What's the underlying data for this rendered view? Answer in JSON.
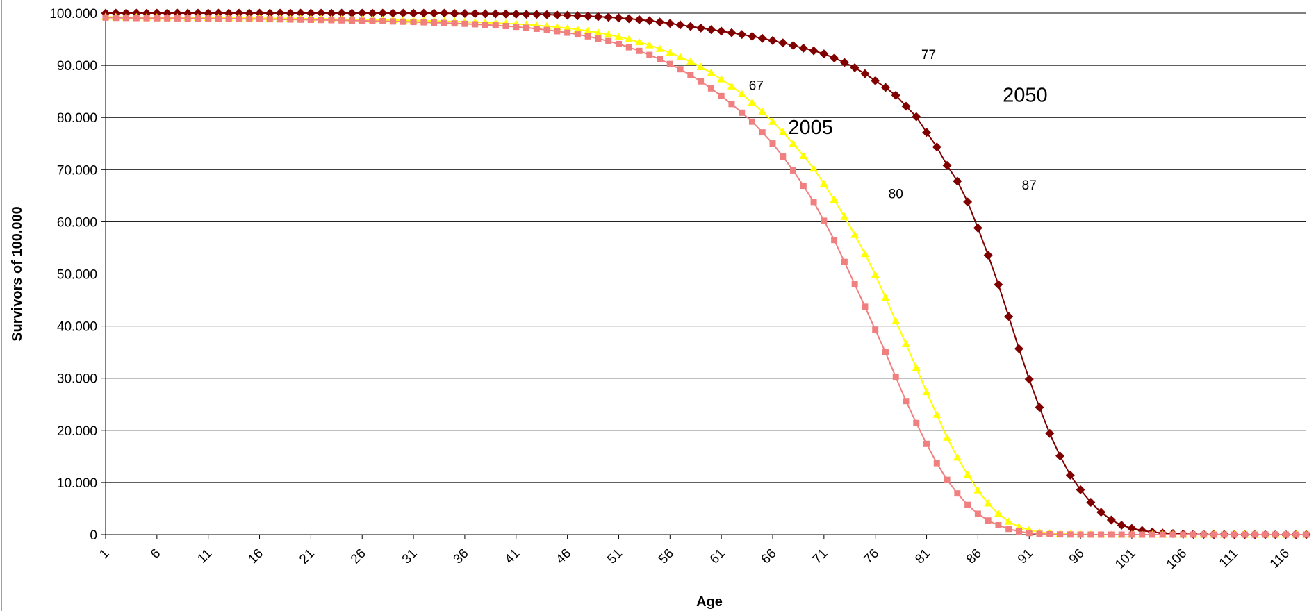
{
  "chart_data": {
    "type": "line",
    "title": "",
    "xlabel": "Age",
    "ylabel": "Survivors  of 100.000",
    "xlim": [
      1,
      118
    ],
    "ylim": [
      0,
      100000
    ],
    "grid": true,
    "legend": "none",
    "y_ticks": [
      {
        "value": 0,
        "label": "0"
      },
      {
        "value": 10000,
        "label": "10.000"
      },
      {
        "value": 20000,
        "label": "20.000"
      },
      {
        "value": 30000,
        "label": "30.000"
      },
      {
        "value": 40000,
        "label": "40.000"
      },
      {
        "value": 50000,
        "label": "50.000"
      },
      {
        "value": 60000,
        "label": "60.000"
      },
      {
        "value": 70000,
        "label": "70.000"
      },
      {
        "value": 80000,
        "label": "80.000"
      },
      {
        "value": 90000,
        "label": "90.000"
      },
      {
        "value": 100000,
        "label": "100.000"
      }
    ],
    "x_tick_labels": [
      "1",
      "6",
      "11",
      "16",
      "21",
      "26",
      "31",
      "36",
      "41",
      "46",
      "51",
      "56",
      "61",
      "66",
      "71",
      "76",
      "81",
      "86",
      "91",
      "96",
      "101",
      "106",
      "111",
      "116"
    ],
    "x": [
      1,
      2,
      3,
      4,
      5,
      6,
      7,
      8,
      9,
      10,
      11,
      12,
      13,
      14,
      15,
      16,
      17,
      18,
      19,
      20,
      21,
      22,
      23,
      24,
      25,
      26,
      27,
      28,
      29,
      30,
      31,
      32,
      33,
      34,
      35,
      36,
      37,
      38,
      39,
      40,
      41,
      42,
      43,
      44,
      45,
      46,
      47,
      48,
      49,
      50,
      51,
      52,
      53,
      54,
      55,
      56,
      57,
      58,
      59,
      60,
      61,
      62,
      63,
      64,
      65,
      66,
      67,
      68,
      69,
      70,
      71,
      72,
      73,
      74,
      75,
      76,
      77,
      78,
      79,
      80,
      81,
      82,
      83,
      84,
      85,
      86,
      87,
      88,
      89,
      90,
      91,
      92,
      93,
      94,
      95,
      96,
      97,
      98,
      99,
      100,
      101,
      102,
      103,
      104,
      105,
      106,
      107,
      108,
      109,
      110,
      111,
      112,
      113,
      114,
      115,
      116,
      117,
      118
    ],
    "series": [
      {
        "color": "#800000",
        "marker": "diamond",
        "values": [
          100000,
          100000,
          100000,
          100000,
          100000,
          100000,
          100000,
          100000,
          100000,
          100000,
          100000,
          100000,
          100000,
          100000,
          100000,
          100000,
          100000,
          100000,
          100000,
          100000,
          100000,
          100000,
          100000,
          100000,
          100000,
          100000,
          100000,
          100000,
          100000,
          100000,
          100000,
          100000,
          100000,
          100000,
          99950,
          99930,
          99910,
          99890,
          99870,
          99850,
          99820,
          99790,
          99760,
          99720,
          99670,
          99600,
          99520,
          99440,
          99340,
          99220,
          99090,
          98930,
          98750,
          98550,
          98310,
          98030,
          97750,
          97450,
          97150,
          96850,
          96550,
          96250,
          95920,
          95560,
          95180,
          94750,
          94300,
          93800,
          93300,
          92800,
          92200,
          91400,
          90550,
          89550,
          88400,
          87050,
          85750,
          84250,
          82150,
          80150,
          77150,
          74350,
          70800,
          67800,
          63800,
          58800,
          53600,
          47950,
          41850,
          35650,
          29800,
          24400,
          19400,
          15100,
          11400,
          8600,
          6200,
          4300,
          2800,
          1800,
          1200,
          800,
          500,
          300,
          200,
          100,
          50,
          30,
          20,
          10,
          5,
          2,
          1,
          0,
          0,
          0,
          0,
          0
        ]
      },
      {
        "color": "#ffff00",
        "marker": "triangle",
        "values": [
          99300,
          99250,
          99230,
          99210,
          99200,
          99190,
          99180,
          99170,
          99160,
          99150,
          99140,
          99120,
          99100,
          99080,
          99060,
          99040,
          99020,
          99000,
          98980,
          98960,
          98940,
          98910,
          98880,
          98850,
          98820,
          98790,
          98760,
          98720,
          98680,
          98640,
          98600,
          98550,
          98500,
          98450,
          98400,
          98340,
          98280,
          98200,
          98120,
          98030,
          97930,
          97810,
          97670,
          97510,
          97330,
          97120,
          96880,
          96600,
          96280,
          95900,
          95480,
          95000,
          94460,
          93860,
          93170,
          92420,
          91600,
          90690,
          89680,
          88560,
          87330,
          85990,
          84500,
          82880,
          81120,
          79200,
          77190,
          75020,
          72630,
          70200,
          67300,
          64250,
          60950,
          57500,
          53850,
          49850,
          45450,
          40950,
          36550,
          32000,
          27350,
          23000,
          18600,
          14800,
          11500,
          8500,
          6000,
          4000,
          2500,
          1500,
          900,
          500,
          300,
          150,
          80,
          40,
          20,
          10,
          5,
          2,
          1,
          0,
          0,
          0,
          0,
          0,
          0,
          0,
          0,
          0,
          0,
          0,
          0,
          0,
          0,
          0,
          0,
          0
        ]
      },
      {
        "color": "#f08080",
        "marker": "square",
        "values": [
          99150,
          99100,
          99080,
          99060,
          99040,
          99030,
          99020,
          99010,
          99000,
          98990,
          98970,
          98950,
          98930,
          98910,
          98890,
          98870,
          98850,
          98820,
          98790,
          98760,
          98730,
          98700,
          98670,
          98630,
          98590,
          98550,
          98510,
          98470,
          98420,
          98370,
          98320,
          98260,
          98200,
          98130,
          98050,
          97970,
          97880,
          97780,
          97660,
          97530,
          97380,
          97210,
          97010,
          96790,
          96540,
          96260,
          95930,
          95560,
          95130,
          94650,
          94090,
          93460,
          92770,
          92000,
          91170,
          90260,
          89250,
          88140,
          86920,
          85580,
          84110,
          82580,
          80920,
          79200,
          77150,
          75020,
          72500,
          69850,
          66900,
          63800,
          60200,
          56500,
          52300,
          48000,
          43700,
          39300,
          34950,
          30200,
          25600,
          21400,
          17400,
          13700,
          10500,
          7900,
          5700,
          4000,
          2700,
          1800,
          1100,
          600,
          300,
          150,
          80,
          40,
          20,
          10,
          5,
          2,
          1,
          0,
          0,
          0,
          0,
          0,
          0,
          0,
          0,
          0,
          0,
          0,
          0,
          0,
          0,
          0,
          0,
          0,
          0,
          0
        ]
      }
    ],
    "annotations": [
      {
        "text": "77",
        "x": 81.2,
        "y": 91200,
        "size": "small"
      },
      {
        "text": "2050",
        "x": 90.6,
        "y": 83000,
        "size": "big"
      },
      {
        "text": "67",
        "x": 64.4,
        "y": 85300,
        "size": "small"
      },
      {
        "text": "2005",
        "x": 69.7,
        "y": 76800,
        "size": "big"
      },
      {
        "text": "80",
        "x": 78.0,
        "y": 64500,
        "size": "small"
      },
      {
        "text": "87",
        "x": 91.0,
        "y": 66200,
        "size": "small"
      }
    ]
  }
}
